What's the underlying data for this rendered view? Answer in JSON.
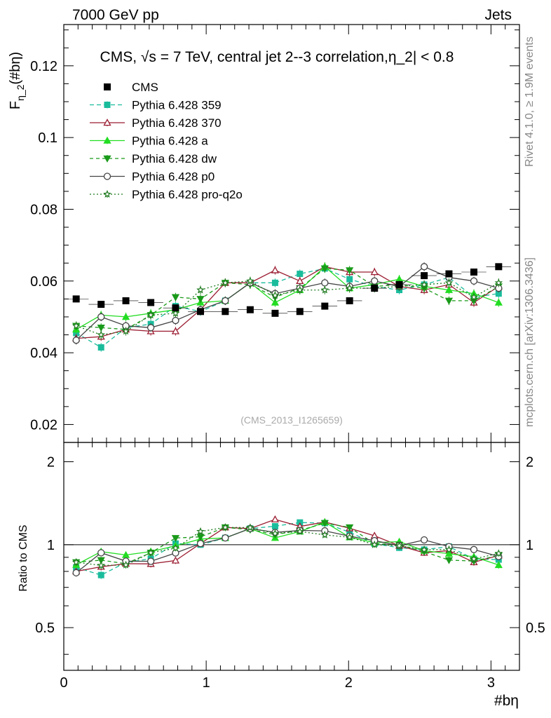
{
  "header": {
    "left": "7000 GeV pp",
    "right": "Jets"
  },
  "side": {
    "top": "Rivet 4.1.0, ≥ 1.9M events",
    "bottom": "mcplots.cern.ch [arXiv:1306.3436]"
  },
  "watermark": "(CMS_2013_I1265659)",
  "chart_data": {
    "type": "scatter",
    "title": "CMS, √s = 7 TeV, central jet 2--3 correlation,η_2| < 0.8",
    "ylabel_main": "F",
    "ylabel_sub": "η_2",
    "ylabel_tail": "(#bη)",
    "ratio_ylabel": "Ratio to CMS",
    "xlabel": "#bη",
    "xlim": [
      0,
      3.2
    ],
    "ylim": [
      0.015,
      0.1315
    ],
    "ratio_ylim": [
      0.35,
      2.35
    ],
    "xticks": [
      0,
      1,
      2,
      3
    ],
    "xtick_labels": [
      "0",
      "1",
      "2",
      "3"
    ],
    "yticks": [
      0.02,
      0.04,
      0.06,
      0.08,
      0.1,
      0.12
    ],
    "ytick_labels": [
      "0.02",
      "0.04",
      "0.06",
      "0.08",
      "0.1",
      "0.12"
    ],
    "ratio_ticks": [
      0.5,
      1,
      2
    ],
    "ratio_tick_labels": [
      "0.5",
      "1",
      "2"
    ],
    "x": [
      0.087,
      0.262,
      0.436,
      0.611,
      0.785,
      0.96,
      1.134,
      1.309,
      1.484,
      1.658,
      1.833,
      2.007,
      2.182,
      2.356,
      2.531,
      2.705,
      2.88,
      3.054
    ],
    "cms": [
      0.055,
      0.0535,
      0.0545,
      0.054,
      0.0525,
      0.0515,
      0.0515,
      0.052,
      0.051,
      0.0515,
      0.053,
      0.0545,
      0.058,
      0.059,
      0.0615,
      0.062,
      0.0625,
      0.064
    ],
    "series": [
      {
        "name": "Pythia 6.428 359",
        "color": "#1abc9c",
        "marker": "square",
        "dash": "6,4",
        "values": [
          0.0455,
          0.0415,
          0.047,
          0.048,
          0.053,
          0.0515,
          0.0545,
          0.0595,
          0.0595,
          0.062,
          0.0635,
          0.0605,
          0.0585,
          0.0575,
          0.059,
          0.061,
          0.0555,
          0.0565
        ]
      },
      {
        "name": "Pythia 6.428 370",
        "color": "#9b1c31",
        "marker": "triangle-open",
        "dash": "",
        "values": [
          0.044,
          0.0445,
          0.0465,
          0.046,
          0.046,
          0.052,
          0.0595,
          0.0595,
          0.063,
          0.06,
          0.064,
          0.0625,
          0.0625,
          0.0585,
          0.0575,
          0.059,
          0.054,
          0.0585
        ]
      },
      {
        "name": "Pythia 6.428 a",
        "color": "#22dd22",
        "marker": "triangle",
        "dash": "",
        "values": [
          0.0465,
          0.0505,
          0.05,
          0.051,
          0.052,
          0.054,
          0.0545,
          0.0595,
          0.054,
          0.0575,
          0.064,
          0.058,
          0.059,
          0.0605,
          0.0585,
          0.0575,
          0.0565,
          0.054
        ]
      },
      {
        "name": "Pythia 6.428 dw",
        "color": "#1a9a1a",
        "marker": "triangle-down",
        "dash": "5,4",
        "values": [
          0.0475,
          0.047,
          0.0465,
          0.0505,
          0.0555,
          0.055,
          0.0595,
          0.059,
          0.0555,
          0.058,
          0.0635,
          0.063,
          0.0585,
          0.059,
          0.058,
          0.0545,
          0.0545,
          0.0585
        ]
      },
      {
        "name": "Pythia 6.428 p0",
        "color": "#444444",
        "marker": "circle-open",
        "dash": "",
        "values": [
          0.0435,
          0.05,
          0.0475,
          0.047,
          0.049,
          0.052,
          0.0545,
          0.0595,
          0.0565,
          0.058,
          0.0595,
          0.0585,
          0.06,
          0.0585,
          0.064,
          0.061,
          0.06,
          0.058
        ]
      },
      {
        "name": "Pythia 6.428 pro-q2o",
        "color": "#1f7a1f",
        "marker": "star",
        "dash": "2,3",
        "values": [
          0.0475,
          0.045,
          0.046,
          0.0505,
          0.051,
          0.0575,
          0.0595,
          0.06,
          0.056,
          0.0575,
          0.0575,
          0.058,
          0.058,
          0.0585,
          0.059,
          0.0595,
          0.0555,
          0.0595
        ]
      }
    ]
  }
}
